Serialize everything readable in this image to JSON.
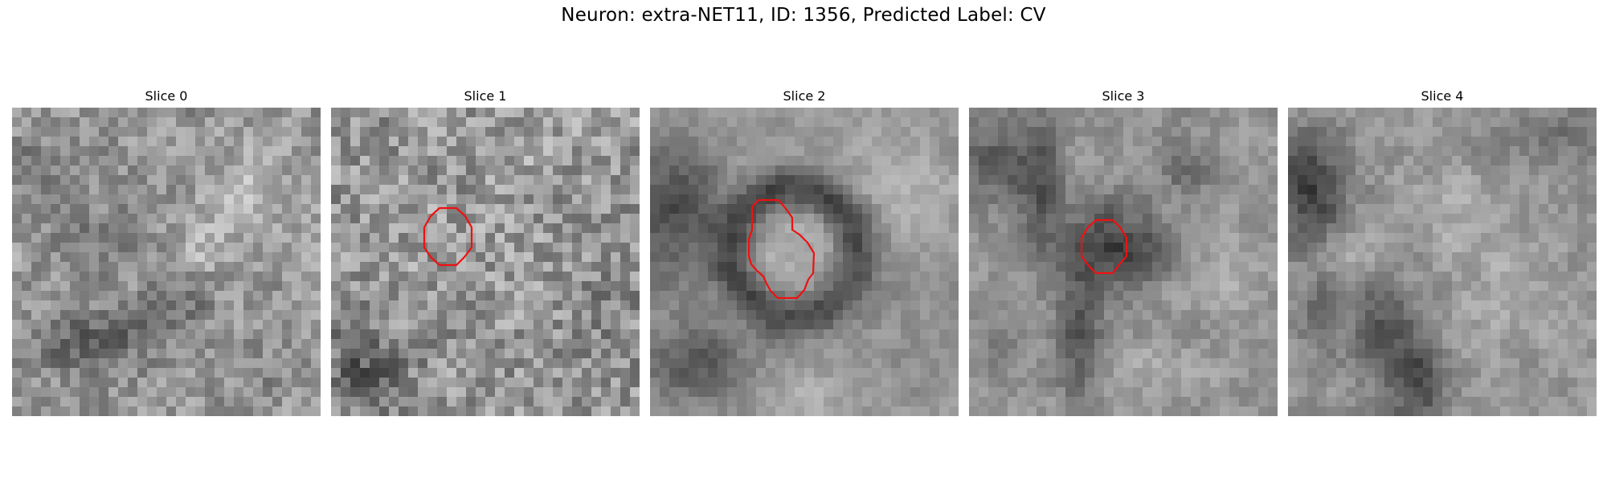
{
  "figure": {
    "title": "Neuron: extra-NET11, ID: 1356, Predicted Label: CV",
    "contour_color": "#ee1111",
    "slices": [
      {
        "title": "Slice 0",
        "has_contour": false
      },
      {
        "title": "Slice 1",
        "has_contour": true
      },
      {
        "title": "Slice 2",
        "has_contour": true
      },
      {
        "title": "Slice 3",
        "has_contour": true
      },
      {
        "title": "Slice 4",
        "has_contour": false
      }
    ]
  }
}
